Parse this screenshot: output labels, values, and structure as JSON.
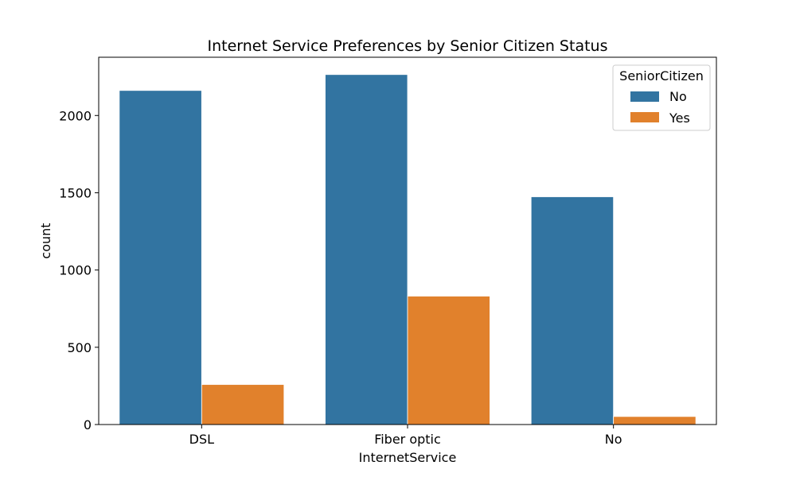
{
  "chart_data": {
    "type": "bar",
    "title": "Internet Service Preferences by Senior Citizen Status",
    "xlabel": "InternetService",
    "ylabel": "count",
    "categories": [
      "DSL",
      "Fiber optic",
      "No"
    ],
    "series": [
      {
        "name": "No",
        "values": [
          2162,
          2265,
          1474
        ],
        "color": "#3274a1"
      },
      {
        "name": "Yes",
        "values": [
          259,
          831,
          52
        ],
        "color": "#e1812c"
      }
    ],
    "ylim": [
      0,
      2377
    ],
    "yticks": [
      0,
      500,
      1000,
      1500,
      2000
    ],
    "grid": false,
    "legend": {
      "title": "SeniorCitizen",
      "placement": "top-right"
    }
  }
}
